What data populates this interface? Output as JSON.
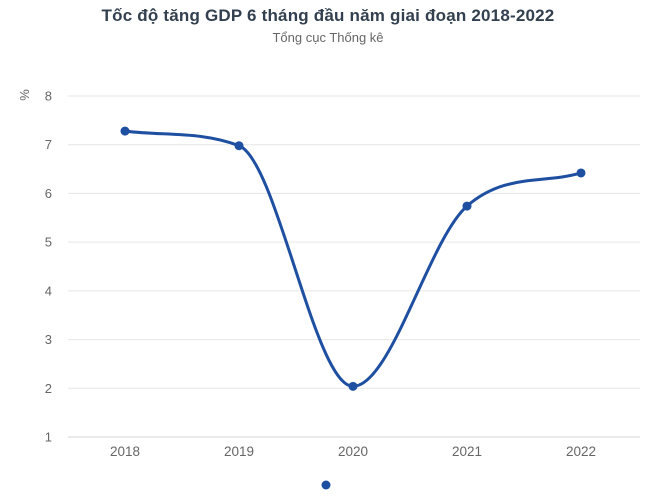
{
  "header": {
    "title": "Tốc độ tăng GDP 6 tháng đầu năm giai đoạn 2018-2022",
    "subtitle": "Tổng cục Thống kê"
  },
  "chart_data": {
    "type": "line",
    "title": "Tốc độ tăng GDP 6 tháng đầu năm giai đoạn 2018-2022",
    "subtitle": "Tổng cục Thống kê",
    "categories": [
      "2018",
      "2019",
      "2020",
      "2021",
      "2022"
    ],
    "values": [
      7.28,
      6.98,
      2.04,
      5.74,
      6.42
    ],
    "xlabel": "",
    "ylabel": "%",
    "ylim": [
      1,
      8
    ],
    "yticks": [
      1,
      2,
      3,
      4,
      5,
      6,
      7,
      8
    ],
    "grid": true,
    "legend_position": "bottom-center",
    "line_color": "#1e4fa1",
    "marker_color": "#1e4fa1",
    "grid_color": "#e6e6e6",
    "axis_line_color": "#d6d6d6",
    "tick_label_color": "#666666",
    "title_color": "#32404f"
  }
}
